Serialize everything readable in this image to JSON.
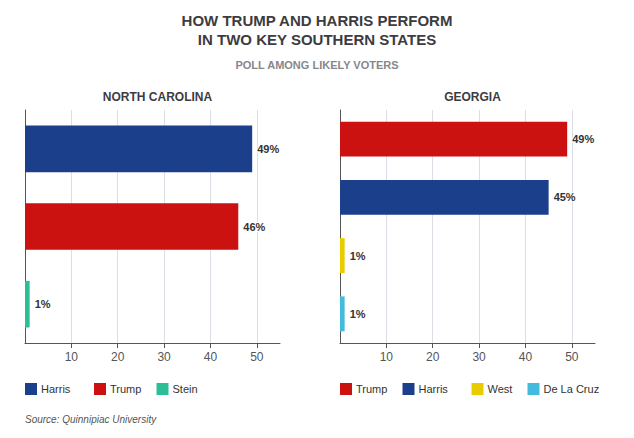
{
  "title": "HOW TRUMP AND HARRIS PERFORM\nIN TWO KEY SOUTHERN STATES",
  "subtitle": "POLL AMONG LIKELY VOTERS",
  "annotations": [
    "Source: Quinnipiac University"
  ],
  "chart_data": [
    {
      "type": "bar",
      "orientation": "horizontal",
      "title": "NORTH CAROLINA",
      "categories": [
        "Harris",
        "Trump",
        "Stein"
      ],
      "values": [
        49,
        46,
        1
      ],
      "value_labels": [
        "49%",
        "46%",
        "1%"
      ],
      "colors": [
        "#1b3f8b",
        "#cc1111",
        "#2abf96"
      ],
      "xlim": [
        0,
        55
      ],
      "xticks": [
        10,
        20,
        30,
        40,
        50
      ],
      "grid": true,
      "data_labels": true,
      "tick_labels": "x",
      "legend": "lower left"
    },
    {
      "type": "bar",
      "orientation": "horizontal",
      "title": "GEORGIA",
      "categories": [
        "Trump",
        "Harris",
        "West",
        "De La Cruz"
      ],
      "values": [
        49,
        45,
        1,
        1
      ],
      "value_labels": [
        "49%",
        "45%",
        "1%",
        "1%"
      ],
      "colors": [
        "#cc1111",
        "#1b3f8b",
        "#e8cc00",
        "#44bbdd"
      ],
      "xlim": [
        0,
        55
      ],
      "xticks": [
        10,
        20,
        30,
        40,
        50
      ],
      "grid": true,
      "data_labels": true,
      "tick_labels": "x",
      "legend": "lower left"
    }
  ]
}
